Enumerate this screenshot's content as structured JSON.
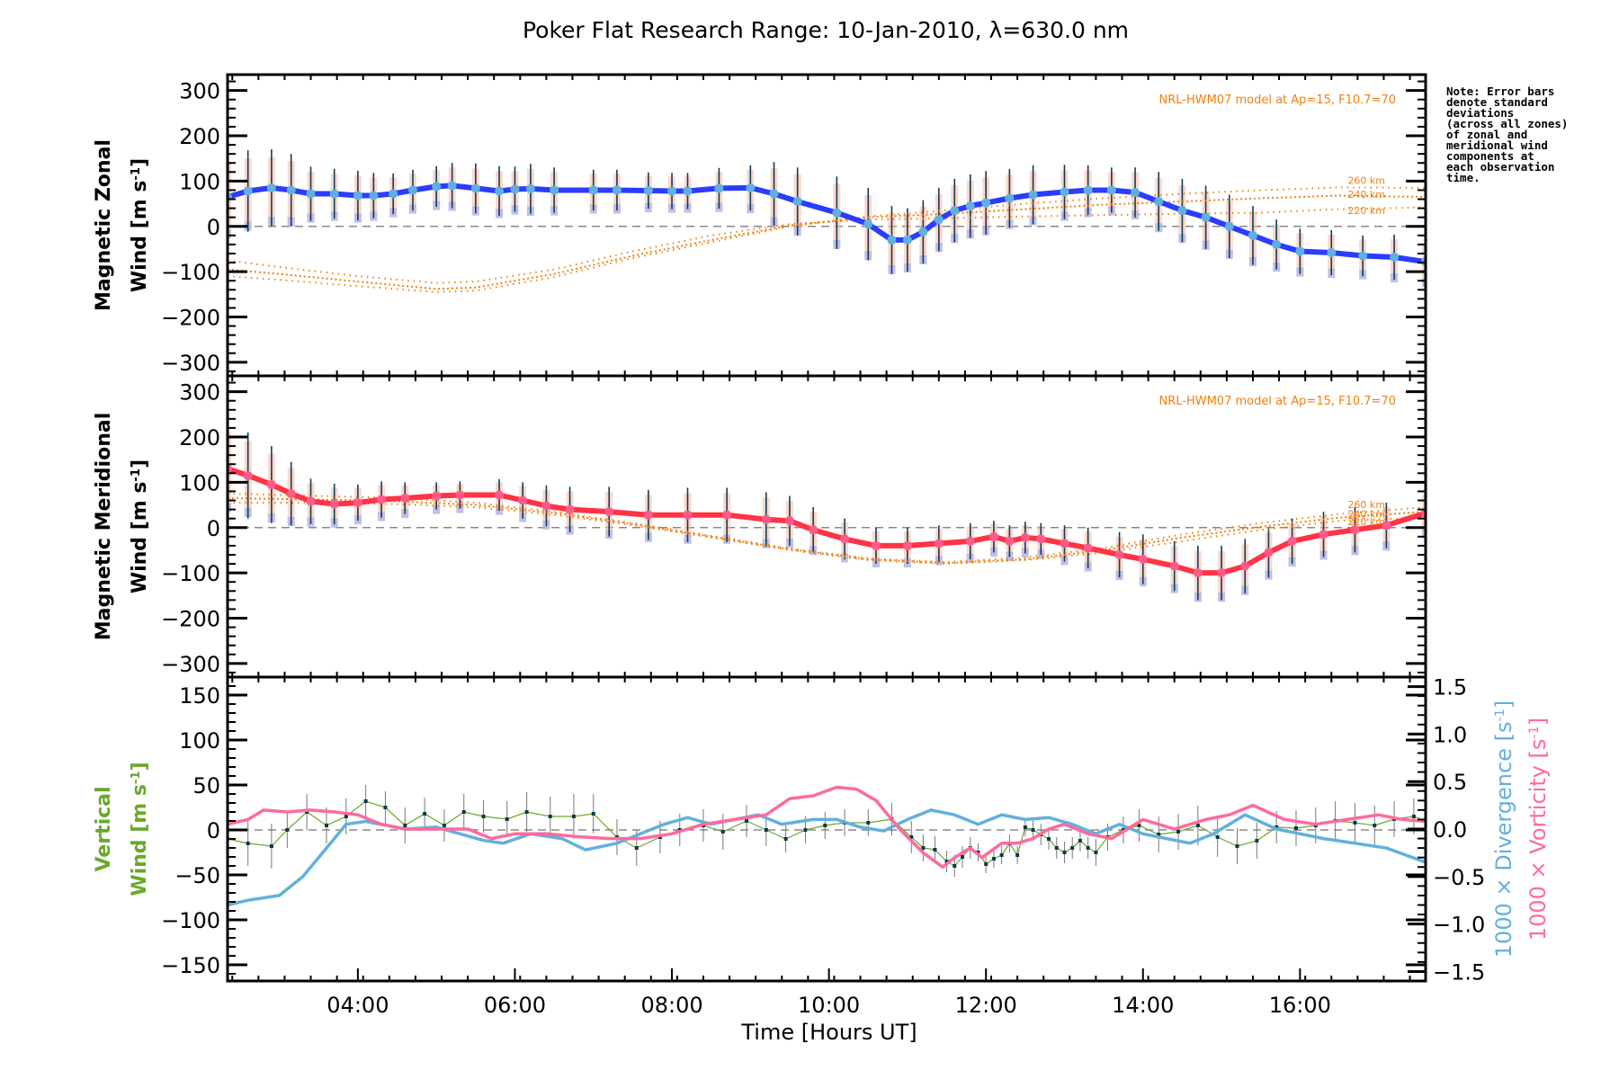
{
  "title": "Poker Flat Research Range: 10-Jan-2010, λ=630.0 nm",
  "note": "Note: Error bars\ndenote standard\ndeviations\n(across all zones)\nof zonal and\nmeridional wind\ncomponents at\neach observation\ntime.",
  "colors": {
    "zonal": "#2b3cff",
    "zonal_points": "#5fb0e0",
    "meridional": "#ff3344",
    "meridional_points": "#ff5b8a",
    "model": "#f08010",
    "vertical": "#6aa82a",
    "vertical_points": "#0b3b4a",
    "divergence": "#62b0dc",
    "vorticity": "#ff6a9c",
    "errorbar": "#0c3c5c",
    "zero_line": "#888888"
  },
  "chart_data": [
    {
      "type": "line",
      "id": "zonal",
      "ylabel": "Magnetic Zonal\nWind [m s⁻¹]",
      "ylabel_lines": [
        "Magnetic Zonal",
        "Wind [m s",
        "-1",
        "]"
      ],
      "ylim": [
        -330,
        335
      ],
      "yticks": [
        300,
        200,
        100,
        0,
        -100,
        -200,
        -300
      ],
      "ytick_labels": [
        "300",
        "200",
        "100",
        "0",
        "−100",
        "−200",
        "−300"
      ],
      "model_label": "NRL-HWM07 model at Ap=15, F10.7=70",
      "series": [
        {
          "name": "Zonal wind",
          "x": [
            2.34,
            2.6,
            2.9,
            3.15,
            3.4,
            3.7,
            4.0,
            4.2,
            4.45,
            4.7,
            5.0,
            5.2,
            5.5,
            5.8,
            6.0,
            6.2,
            6.5,
            7.0,
            7.3,
            7.7,
            8.0,
            8.2,
            8.6,
            9.0,
            9.3,
            9.6,
            10.1,
            10.5,
            10.8,
            11.0,
            11.2,
            11.4,
            11.6,
            11.8,
            12.0,
            12.3,
            12.6,
            13.0,
            13.3,
            13.6,
            13.9,
            14.2,
            14.5,
            14.8,
            15.1,
            15.4,
            15.7,
            16.0,
            16.4,
            16.8,
            17.2,
            17.6
          ],
          "y": [
            65,
            78,
            85,
            80,
            72,
            72,
            68,
            68,
            72,
            80,
            88,
            90,
            84,
            78,
            82,
            83,
            80,
            80,
            80,
            79,
            78,
            78,
            84,
            85,
            72,
            55,
            30,
            5,
            -30,
            -30,
            -12,
            15,
            35,
            45,
            52,
            62,
            70,
            76,
            80,
            80,
            75,
            55,
            35,
            20,
            0,
            -20,
            -40,
            -55,
            -58,
            -65,
            -68,
            -78
          ]
        },
        {
          "name": "HWM07 220 km",
          "x": [
            2.34,
            3.0,
            4.0,
            5.0,
            5.5,
            6.5,
            7.5,
            8.5,
            9.5,
            10.5,
            11.5,
            12.5,
            13.5,
            14.5,
            15.5,
            16.5,
            17.6
          ],
          "y": [
            -75,
            -90,
            -110,
            -125,
            -122,
            -95,
            -55,
            -20,
            5,
            15,
            18,
            22,
            25,
            28,
            30,
            38,
            42
          ]
        },
        {
          "name": "HWM07 240 km",
          "x": [
            2.34,
            3.0,
            4.0,
            5.0,
            5.5,
            6.5,
            7.5,
            8.5,
            9.5,
            10.5,
            11.5,
            12.5,
            13.5,
            14.5,
            15.5,
            16.5,
            17.6
          ],
          "y": [
            -95,
            -105,
            -122,
            -138,
            -135,
            -105,
            -65,
            -30,
            2,
            20,
            28,
            38,
            48,
            55,
            62,
            68,
            65
          ]
        },
        {
          "name": "HWM07 260 km",
          "x": [
            2.34,
            3.0,
            4.0,
            5.0,
            5.5,
            6.5,
            7.5,
            8.5,
            9.5,
            10.5,
            11.5,
            12.5,
            13.5,
            14.5,
            15.5,
            16.5,
            17.6
          ],
          "y": [
            -110,
            -118,
            -132,
            -145,
            -142,
            -112,
            -70,
            -35,
            0,
            22,
            35,
            50,
            62,
            72,
            80,
            86,
            85
          ]
        }
      ],
      "altitude_labels": [
        "260 km",
        "240 km",
        "220 km"
      ],
      "errorbar_std": [
        95,
        90,
        85,
        80,
        60,
        55,
        55,
        50,
        45,
        45,
        45,
        50,
        55,
        55,
        50,
        55,
        50,
        45,
        45,
        40,
        40,
        40,
        45,
        50,
        70,
        75,
        80,
        80,
        75,
        70,
        70,
        70,
        70,
        70,
        70,
        65,
        65,
        60,
        55,
        50,
        55,
        65,
        70,
        70,
        70,
        65,
        55,
        50,
        50,
        45,
        50,
        50
      ]
    },
    {
      "type": "line",
      "id": "meridional",
      "ylabel_lines": [
        "Magnetic Meridional",
        "Wind [m s",
        "-1",
        "]"
      ],
      "ylim": [
        -330,
        335
      ],
      "yticks": [
        300,
        200,
        100,
        0,
        -100,
        -200,
        -300
      ],
      "ytick_labels": [
        "300",
        "200",
        "100",
        "0",
        "−100",
        "−200",
        "−300"
      ],
      "model_label": "NRL-HWM07 model at Ap=15, F10.7=70",
      "series": [
        {
          "name": "Meridional wind",
          "x": [
            2.34,
            2.6,
            2.9,
            3.15,
            3.4,
            3.7,
            4.0,
            4.3,
            4.6,
            5.0,
            5.3,
            5.8,
            6.1,
            6.4,
            6.7,
            7.2,
            7.7,
            8.2,
            8.7,
            9.2,
            9.5,
            9.8,
            10.2,
            10.6,
            11.0,
            11.4,
            11.8,
            12.1,
            12.3,
            12.5,
            12.7,
            13.0,
            13.3,
            13.7,
            14.0,
            14.4,
            14.7,
            15.0,
            15.3,
            15.6,
            15.9,
            16.3,
            16.7,
            17.1,
            17.6
          ],
          "y": [
            130,
            115,
            95,
            75,
            58,
            52,
            55,
            62,
            65,
            70,
            72,
            72,
            60,
            48,
            40,
            35,
            28,
            28,
            28,
            18,
            15,
            -5,
            -25,
            -40,
            -40,
            -35,
            -30,
            -20,
            -30,
            -22,
            -25,
            -35,
            -45,
            -60,
            -70,
            -85,
            -100,
            -100,
            -85,
            -55,
            -30,
            -15,
            -5,
            5,
            32
          ]
        },
        {
          "name": "HWM07 220 km",
          "x": [
            2.34,
            3.5,
            4.5,
            5.5,
            6.5,
            7.5,
            8.5,
            9.5,
            10.5,
            11.5,
            12.5,
            13.5,
            14.5,
            15.5,
            16.5,
            17.6
          ],
          "y": [
            55,
            55,
            52,
            45,
            28,
            5,
            -22,
            -50,
            -72,
            -80,
            -72,
            -55,
            -30,
            -5,
            15,
            22
          ]
        },
        {
          "name": "HWM07 240 km",
          "x": [
            2.34,
            3.5,
            4.5,
            5.5,
            6.5,
            7.5,
            8.5,
            9.5,
            10.5,
            11.5,
            12.5,
            13.5,
            14.5,
            15.5,
            16.5,
            17.6
          ],
          "y": [
            65,
            62,
            58,
            50,
            32,
            8,
            -20,
            -48,
            -70,
            -78,
            -70,
            -50,
            -22,
            2,
            22,
            35
          ]
        },
        {
          "name": "HWM07 260 km",
          "x": [
            2.34,
            3.5,
            4.5,
            5.5,
            6.5,
            7.5,
            8.5,
            9.5,
            10.5,
            11.5,
            12.5,
            13.5,
            14.5,
            15.5,
            16.5,
            17.6
          ],
          "y": [
            75,
            70,
            65,
            55,
            35,
            10,
            -18,
            -46,
            -68,
            -76,
            -66,
            -45,
            -15,
            10,
            30,
            45
          ]
        }
      ],
      "altitude_labels": [
        "260 km",
        "240 km",
        "220 km"
      ],
      "errorbar_std": [
        100,
        95,
        85,
        70,
        50,
        45,
        40,
        40,
        35,
        30,
        30,
        35,
        40,
        45,
        50,
        55,
        55,
        60,
        60,
        60,
        55,
        50,
        45,
        40,
        40,
        40,
        40,
        35,
        35,
        35,
        35,
        40,
        45,
        50,
        55,
        55,
        60,
        60,
        60,
        55,
        50,
        50,
        50,
        50,
        50
      ]
    },
    {
      "type": "line",
      "id": "vertical",
      "ylabel_lines": [
        "Vertical",
        "Wind [m s",
        "-1",
        "]"
      ],
      "xlabel": "Time [Hours UT]",
      "xlim": [
        2.34,
        17.6
      ],
      "xticks": [
        4,
        6,
        8,
        10,
        12,
        14,
        16
      ],
      "xtick_labels": [
        "04:00",
        "06:00",
        "08:00",
        "10:00",
        "12:00",
        "14:00",
        "16:00"
      ],
      "ylim": [
        -168,
        170
      ],
      "yticks": [
        150,
        100,
        50,
        0,
        -50,
        -100,
        -150
      ],
      "ytick_labels": [
        "150",
        "100",
        "50",
        "0",
        "−50",
        "−100",
        "−150"
      ],
      "y2lim": [
        -1.6,
        1.6
      ],
      "y2ticks": [
        1.5,
        1.0,
        0.5,
        0.0,
        -0.5,
        -1.0,
        -1.5
      ],
      "y2tick_labels": [
        "1.5",
        "1.0",
        "0.5",
        "0.0",
        "−0.5",
        "−1.0",
        "−1.5"
      ],
      "y2label_divergence": [
        "1000 × Divergence [s",
        "-1",
        "]"
      ],
      "y2label_vorticity": [
        "1000 × Vorticity [s",
        "-1",
        "]"
      ],
      "series": [
        {
          "name": "Vertical wind",
          "axis": "left",
          "x": [
            2.34,
            2.6,
            2.9,
            3.1,
            3.35,
            3.6,
            3.85,
            4.1,
            4.35,
            4.6,
            4.85,
            5.1,
            5.35,
            5.6,
            5.9,
            6.15,
            6.45,
            6.75,
            7.0,
            7.3,
            7.55,
            7.85,
            8.1,
            8.4,
            8.65,
            8.95,
            9.2,
            9.45,
            9.7,
            9.95,
            10.2,
            10.5,
            10.8,
            11.05,
            11.2,
            11.35,
            11.5,
            11.6,
            11.7,
            11.8,
            11.9,
            12.0,
            12.1,
            12.2,
            12.3,
            12.4,
            12.5,
            12.6,
            12.7,
            12.8,
            12.9,
            13.0,
            13.1,
            13.2,
            13.3,
            13.4,
            13.55,
            13.75,
            13.95,
            14.2,
            14.45,
            14.7,
            14.95,
            15.2,
            15.45,
            15.7,
            15.95,
            16.2,
            16.45,
            16.7,
            16.95,
            17.2,
            17.45,
            17.6
          ],
          "y": [
            -10,
            -15,
            -18,
            0,
            20,
            5,
            15,
            32,
            25,
            5,
            18,
            5,
            20,
            15,
            12,
            20,
            15,
            15,
            18,
            -8,
            -20,
            -8,
            0,
            5,
            -2,
            10,
            0,
            -10,
            0,
            5,
            8,
            8,
            12,
            -8,
            -20,
            -22,
            -35,
            -40,
            -30,
            -20,
            -25,
            -38,
            -32,
            -28,
            -15,
            -28,
            3,
            0,
            -5,
            -10,
            -20,
            -25,
            -20,
            -12,
            -20,
            -25,
            -8,
            0,
            5,
            -5,
            -2,
            5,
            -8,
            -18,
            -12,
            3,
            2,
            5,
            10,
            8,
            5,
            12,
            15,
            10
          ],
          "std": [
            20,
            25,
            25,
            20,
            20,
            20,
            20,
            18,
            18,
            20,
            18,
            18,
            20,
            18,
            20,
            22,
            22,
            25,
            22,
            20,
            20,
            18,
            18,
            18,
            20,
            18,
            18,
            15,
            15,
            15,
            15,
            15,
            18,
            18,
            15,
            15,
            12,
            12,
            12,
            12,
            10,
            10,
            10,
            10,
            10,
            10,
            10,
            12,
            12,
            12,
            12,
            12,
            12,
            12,
            12,
            15,
            15,
            15,
            18,
            20,
            20,
            22,
            22,
            20,
            20,
            18,
            20,
            20,
            22,
            22,
            22,
            20,
            20,
            20
          ]
        },
        {
          "name": "1000 x Divergence",
          "axis": "right",
          "x": [
            2.34,
            2.6,
            3.0,
            3.3,
            3.6,
            3.85,
            4.1,
            4.6,
            5.0,
            5.3,
            5.6,
            5.85,
            6.2,
            6.6,
            6.9,
            7.3,
            7.6,
            7.9,
            8.2,
            8.5,
            8.8,
            9.1,
            9.4,
            9.8,
            10.1,
            10.4,
            10.7,
            11.0,
            11.3,
            11.6,
            11.9,
            12.2,
            12.5,
            12.8,
            13.1,
            13.4,
            13.7,
            14.0,
            14.3,
            14.6,
            14.9,
            15.3,
            15.7,
            16.0,
            16.3,
            16.7,
            17.1,
            17.6
          ],
          "y": [
            -0.8,
            -0.75,
            -0.7,
            -0.5,
            -0.2,
            0.05,
            0.08,
            0.0,
            0.02,
            -0.05,
            -0.12,
            -0.15,
            -0.05,
            -0.1,
            -0.22,
            -0.15,
            -0.05,
            0.05,
            0.12,
            0.05,
            0.1,
            0.15,
            0.05,
            0.1,
            0.1,
            0.02,
            -0.02,
            0.1,
            0.2,
            0.15,
            0.05,
            0.15,
            0.1,
            0.12,
            0.05,
            -0.05,
            0.05,
            -0.05,
            -0.1,
            -0.15,
            -0.05,
            0.15,
            0.0,
            -0.05,
            -0.1,
            -0.15,
            -0.2,
            -0.35
          ]
        },
        {
          "name": "1000 x Vorticity",
          "axis": "right",
          "x": [
            2.34,
            2.6,
            2.8,
            3.1,
            3.4,
            3.7,
            4.0,
            4.3,
            4.6,
            5.0,
            5.4,
            5.7,
            6.0,
            6.4,
            6.8,
            7.2,
            7.6,
            8.0,
            8.4,
            8.8,
            9.2,
            9.5,
            9.8,
            10.1,
            10.35,
            10.6,
            10.9,
            11.2,
            11.45,
            11.6,
            11.8,
            11.95,
            12.2,
            12.4,
            12.6,
            12.8,
            13.0,
            13.3,
            13.6,
            14.0,
            14.4,
            14.8,
            15.1,
            15.4,
            15.8,
            16.2,
            16.6,
            17.0,
            17.3,
            17.6
          ],
          "y": [
            0.05,
            0.1,
            0.2,
            0.18,
            0.2,
            0.18,
            0.15,
            0.05,
            0.0,
            0.0,
            0.0,
            -0.1,
            -0.05,
            -0.05,
            -0.08,
            -0.1,
            -0.1,
            -0.05,
            0.05,
            0.1,
            0.15,
            0.32,
            0.35,
            0.44,
            0.42,
            0.3,
            0.0,
            -0.25,
            -0.4,
            -0.3,
            -0.2,
            -0.3,
            -0.15,
            -0.15,
            -0.1,
            0.0,
            0.05,
            -0.05,
            -0.1,
            0.1,
            0.0,
            0.1,
            0.15,
            0.25,
            0.1,
            0.05,
            0.1,
            0.15,
            0.1,
            0.08
          ]
        }
      ]
    }
  ]
}
